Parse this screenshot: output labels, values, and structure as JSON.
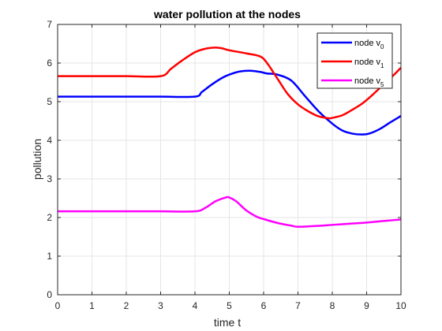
{
  "chart_data": {
    "type": "line",
    "title": "water pollution at the nodes",
    "xlabel": "time t",
    "ylabel": "pollution",
    "xlim": [
      0,
      10
    ],
    "ylim": [
      0,
      7
    ],
    "xticks": [
      0,
      1,
      2,
      3,
      4,
      5,
      6,
      7,
      8,
      9,
      10
    ],
    "yticks": [
      0,
      1,
      2,
      3,
      4,
      5,
      6,
      7
    ],
    "grid": true,
    "legend_position": "top-right",
    "series": [
      {
        "name": "node v",
        "subscript": "0",
        "color": "#0000ff",
        "x": [
          0,
          1,
          2,
          3,
          4,
          4.2,
          4.5,
          4.8,
          5.0,
          5.3,
          5.6,
          5.9,
          6.1,
          6.4,
          6.8,
          7.2,
          7.6,
          8.0,
          8.3,
          8.6,
          8.9,
          9.1,
          9.4,
          9.7,
          10.0
        ],
        "y": [
          5.13,
          5.13,
          5.13,
          5.13,
          5.13,
          5.25,
          5.45,
          5.62,
          5.7,
          5.78,
          5.8,
          5.77,
          5.73,
          5.7,
          5.55,
          5.15,
          4.75,
          4.43,
          4.25,
          4.17,
          4.15,
          4.18,
          4.3,
          4.47,
          4.63
        ]
      },
      {
        "name": "node v",
        "subscript": "1",
        "color": "#ff0000",
        "x": [
          0,
          1,
          2,
          3,
          3.3,
          3.6,
          4.0,
          4.3,
          4.6,
          4.8,
          5.0,
          5.5,
          5.9,
          6.1,
          6.4,
          6.7,
          7.0,
          7.3,
          7.6,
          7.9,
          8.0,
          8.3,
          8.6,
          8.9,
          9.2,
          9.5,
          9.8,
          10.0
        ],
        "y": [
          5.66,
          5.66,
          5.66,
          5.66,
          5.85,
          6.05,
          6.28,
          6.37,
          6.4,
          6.38,
          6.33,
          6.25,
          6.17,
          6.0,
          5.6,
          5.2,
          4.93,
          4.75,
          4.62,
          4.57,
          4.58,
          4.65,
          4.8,
          4.97,
          5.2,
          5.45,
          5.7,
          5.88
        ]
      },
      {
        "name": "node v",
        "subscript": "5",
        "color": "#ff00ff",
        "x": [
          0,
          1,
          2,
          3,
          4,
          4.3,
          4.6,
          4.9,
          5.0,
          5.2,
          5.5,
          5.8,
          6.0,
          6.4,
          6.8,
          7.0,
          7.5,
          8.0,
          8.5,
          9.0,
          9.5,
          10.0
        ],
        "y": [
          2.16,
          2.16,
          2.16,
          2.16,
          2.16,
          2.25,
          2.42,
          2.52,
          2.52,
          2.42,
          2.18,
          2.02,
          1.96,
          1.86,
          1.79,
          1.76,
          1.78,
          1.81,
          1.84,
          1.87,
          1.91,
          1.95
        ]
      }
    ]
  }
}
